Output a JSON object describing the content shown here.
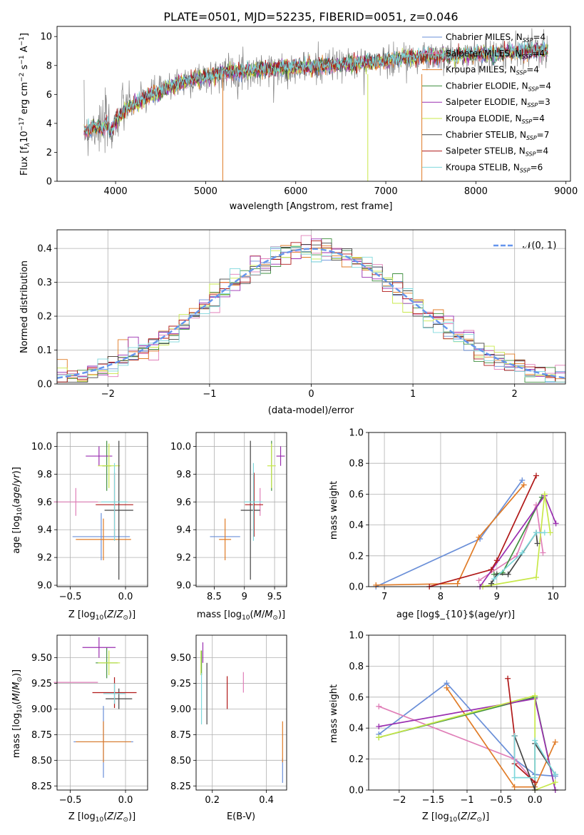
{
  "colors": {
    "Chabrier MILES": "#6a8fd8",
    "Salpeter MILES": "#e07fb8",
    "Kroupa MILES": "#e07b26",
    "Chabrier ELODIE": "#3f8f3f",
    "Salpeter ELODIE": "#9a2eb0",
    "Kroupa ELODIE": "#c8e84a",
    "Chabrier STELIB": "#444444",
    "Salpeter STELIB": "#b01818",
    "Kroupa STELIB": "#7fd8dc"
  },
  "chart_data": [
    {
      "id": "spectrum",
      "type": "line",
      "title": "PLATE=0501, MJD=52235, FIBERID=0051, z=0.046",
      "xlabel": "wavelength [Angstrom, rest frame]",
      "ylabel": "Flux [f$_\\lambda$10$^{-17}$ erg cm$^{-2}$ s$^{-1}$ A$^{-1}$]",
      "xlim": [
        3350,
        9050
      ],
      "ylim": [
        0,
        10.7
      ],
      "xticks": [
        4000,
        5000,
        6000,
        7000,
        8000,
        9000
      ],
      "yticks": [
        0,
        2,
        4,
        6,
        8,
        10
      ],
      "grid": false,
      "legend": "upper right",
      "legend_entries": [
        {
          "name": "Chabrier MILES",
          "suffix": "=4"
        },
        {
          "name": "Salpeter MILES",
          "suffix": "=4"
        },
        {
          "name": "Kroupa MILES",
          "suffix": "=4"
        },
        {
          "name": "Chabrier ELODIE",
          "suffix": "=4"
        },
        {
          "name": "Salpeter ELODIE",
          "suffix": "=3"
        },
        {
          "name": "Kroupa ELODIE",
          "suffix": "=4"
        },
        {
          "name": "Chabrier STELIB",
          "suffix": "=7"
        },
        {
          "name": "Salpeter STELIB",
          "suffix": "=4"
        },
        {
          "name": "Kroupa STELIB",
          "suffix": "=6"
        }
      ],
      "data_x": [
        3650,
        3700,
        3750,
        3800,
        3850,
        3900,
        3950,
        4000,
        4100,
        4200,
        4300,
        4400,
        4500,
        4600,
        4700,
        4800,
        4900,
        5000,
        5200,
        5400,
        5600,
        5800,
        6000,
        6200,
        6400,
        6600,
        6800,
        7000,
        7200,
        7400,
        7600,
        7800,
        8000,
        8200,
        8400,
        8600,
        8800
      ],
      "data_y": [
        3.5,
        3.6,
        3.8,
        3.9,
        3.5,
        4.0,
        3.4,
        4.2,
        5.0,
        5.3,
        5.6,
        6.0,
        6.2,
        6.5,
        6.8,
        6.9,
        7.1,
        7.2,
        7.5,
        7.6,
        7.7,
        7.8,
        7.8,
        7.9,
        8.0,
        8.1,
        8.2,
        8.3,
        8.5,
        8.6,
        8.6,
        8.7,
        8.8,
        8.8,
        8.9,
        9.0,
        9.1
      ],
      "model_y": [
        3.5,
        3.6,
        3.7,
        3.8,
        3.6,
        3.9,
        3.5,
        4.1,
        4.9,
        5.3,
        5.6,
        6.0,
        6.2,
        6.5,
        6.8,
        6.9,
        7.1,
        7.2,
        7.5,
        7.6,
        7.7,
        7.8,
        7.9,
        7.9,
        8.0,
        8.1,
        8.2,
        8.3,
        8.5,
        8.6,
        8.6,
        8.7,
        8.8,
        8.8,
        8.9,
        9.0,
        9.0
      ]
    },
    {
      "id": "residuals",
      "type": "bar",
      "xlabel": "(data-model)/error",
      "ylabel": "Normed distribution",
      "xlim": [
        -2.5,
        2.5
      ],
      "ylim": [
        0,
        0.455
      ],
      "xticks": [
        -2,
        -1,
        0,
        1,
        2
      ],
      "yticks": [
        0.0,
        0.1,
        0.2,
        0.3,
        0.4
      ],
      "grid": true,
      "legend": "upper right",
      "reference_curve": "$\\mathcal{N}(0,1)$",
      "bin_width": 0.1
    },
    {
      "id": "age_vs_Z",
      "type": "scatter",
      "xlabel": "Z [log$_{10}$(Z/Z$_\\odot$)]",
      "ylabel": "age  [log$_{10}$(age/yr)]",
      "xlim": [
        -0.62,
        0.2
      ],
      "ylim": [
        8.99,
        10.1
      ],
      "xticks": [
        -0.5,
        0.0
      ],
      "yticks": [
        9.0,
        9.2,
        9.4,
        9.6,
        9.8,
        10.0
      ],
      "grid": true,
      "points": [
        {
          "series": "Chabrier MILES",
          "x": -0.22,
          "y": 9.35,
          "xerr": 0.26,
          "yerr": 0.17
        },
        {
          "series": "Salpeter MILES",
          "x": -0.45,
          "y": 9.6,
          "xerr": 0.2,
          "yerr": 0.1
        },
        {
          "series": "Kroupa MILES",
          "x": -0.2,
          "y": 9.33,
          "xerr": 0.25,
          "yerr": 0.15
        },
        {
          "series": "Chabrier ELODIE",
          "x": -0.17,
          "y": 9.86,
          "xerr": 0.04,
          "yerr": 0.18
        },
        {
          "series": "Salpeter ELODIE",
          "x": -0.24,
          "y": 9.93,
          "xerr": 0.12,
          "yerr": 0.07
        },
        {
          "series": "Kroupa ELODIE",
          "x": -0.15,
          "y": 9.86,
          "xerr": 0.1,
          "yerr": 0.16
        },
        {
          "series": "Chabrier STELIB",
          "x": -0.06,
          "y": 9.54,
          "xerr": 0.13,
          "yerr": 0.5
        },
        {
          "series": "Salpeter STELIB",
          "x": -0.1,
          "y": 9.58,
          "xerr": 0.17,
          "yerr": 0.23
        },
        {
          "series": "Kroupa STELIB",
          "x": -0.1,
          "y": 9.6,
          "xerr": 0.12,
          "yerr": 0.28
        }
      ]
    },
    {
      "id": "age_vs_mass",
      "type": "scatter",
      "xlabel": "mass [log$_{10}$(M/M$_\\odot$)]",
      "ylabel": "",
      "xlim": [
        8.2,
        9.7
      ],
      "ylim": [
        8.99,
        10.1
      ],
      "xticks": [
        8.5,
        9.0,
        9.5
      ],
      "yticks": [
        9.0,
        9.2,
        9.4,
        9.6,
        9.8,
        10.0
      ],
      "grid": true,
      "points": [
        {
          "series": "Chabrier MILES",
          "x": 8.68,
          "y": 9.35,
          "xerr": 0.25,
          "yerr": 0.0
        },
        {
          "series": "Salpeter MILES",
          "x": 9.26,
          "y": 9.6,
          "xerr": 0.0,
          "yerr": 0.1
        },
        {
          "series": "Kroupa MILES",
          "x": 8.68,
          "y": 9.33,
          "xerr": 0.1,
          "yerr": 0.15
        },
        {
          "series": "Chabrier ELODIE",
          "x": 9.45,
          "y": 9.86,
          "xerr": 0.0,
          "yerr": 0.18
        },
        {
          "series": "Salpeter ELODIE",
          "x": 9.6,
          "y": 9.93,
          "xerr": 0.07,
          "yerr": 0.07
        },
        {
          "series": "Kroupa ELODIE",
          "x": 9.45,
          "y": 9.86,
          "xerr": 0.07,
          "yerr": 0.16
        },
        {
          "series": "Chabrier STELIB",
          "x": 9.1,
          "y": 9.54,
          "xerr": 0.16,
          "yerr": 0.5
        },
        {
          "series": "Salpeter STELIB",
          "x": 9.16,
          "y": 9.58,
          "xerr": 0.15,
          "yerr": 0.23
        },
        {
          "series": "Kroupa STELIB",
          "x": 9.15,
          "y": 9.6,
          "xerr": 0.15,
          "yerr": 0.28
        }
      ]
    },
    {
      "id": "weight_vs_age",
      "type": "line",
      "xlabel": "age  [log$_{10}$(age/yr)]",
      "ylabel": "mass weight",
      "xlim": [
        6.72,
        10.22
      ],
      "ylim": [
        0,
        1.0
      ],
      "xticks": [
        7,
        8,
        9,
        10
      ],
      "yticks": [
        0.0,
        0.2,
        0.4,
        0.6,
        0.8,
        1.0
      ],
      "grid": true,
      "series": [
        {
          "series": "Chabrier MILES",
          "x": [
            6.85,
            8.7,
            9.45
          ],
          "y": [
            0.0,
            0.31,
            0.69
          ]
        },
        {
          "series": "Salpeter MILES",
          "x": [
            8.68,
            9.35,
            9.7,
            9.82
          ],
          "y": [
            0.04,
            0.2,
            0.53,
            0.22
          ]
        },
        {
          "series": "Kroupa MILES",
          "x": [
            6.85,
            8.3,
            8.68,
            9.48
          ],
          "y": [
            0.01,
            0.02,
            0.32,
            0.66
          ]
        },
        {
          "series": "Chabrier ELODIE",
          "x": [
            8.95,
            9.1,
            9.8
          ],
          "y": [
            0.08,
            0.09,
            0.58
          ]
        },
        {
          "series": "Salpeter ELODIE",
          "x": [
            8.7,
            9.85,
            10.05
          ],
          "y": [
            0.0,
            0.59,
            0.41
          ]
        },
        {
          "series": "Kroupa ELODIE",
          "x": [
            8.75,
            9.7,
            9.85,
            9.95
          ],
          "y": [
            0.0,
            0.06,
            0.6,
            0.35
          ]
        },
        {
          "series": "Chabrier STELIB",
          "x": [
            8.9,
            9.0,
            9.2,
            9.7,
            9.72
          ],
          "y": [
            0.02,
            0.08,
            0.08,
            0.35,
            0.28
          ]
        },
        {
          "series": "Salpeter STELIB",
          "x": [
            7.8,
            8.9,
            9.0,
            9.7
          ],
          "y": [
            0.0,
            0.11,
            0.17,
            0.72
          ]
        },
        {
          "series": "Kroupa STELIB",
          "x": [
            8.95,
            9.45,
            9.7,
            9.85
          ],
          "y": [
            0.05,
            0.22,
            0.35,
            0.35
          ]
        }
      ]
    },
    {
      "id": "mass_vs_Z",
      "type": "scatter",
      "xlabel": "Z [log$_{10}$(Z/Z$_\\odot$)]",
      "ylabel": "mass [log$_{10}$(M/M$_\\odot$)]",
      "xlim": [
        -0.62,
        0.2
      ],
      "ylim": [
        8.21,
        9.72
      ],
      "xticks": [
        -0.5,
        0.0
      ],
      "yticks": [
        8.25,
        8.5,
        8.75,
        9.0,
        9.25,
        9.5
      ],
      "grid": true,
      "points": [
        {
          "series": "Chabrier MILES",
          "x": -0.2,
          "y": 8.68,
          "xerr": 0.27,
          "yerr": 0.35
        },
        {
          "series": "Salpeter MILES",
          "x": -0.45,
          "y": 9.26,
          "xerr": 0.2,
          "yerr": 0.0
        },
        {
          "series": "Kroupa MILES",
          "x": -0.2,
          "y": 8.68,
          "xerr": 0.25,
          "yerr": 0.2
        },
        {
          "series": "Chabrier ELODIE",
          "x": -0.17,
          "y": 9.45,
          "xerr": 0.1,
          "yerr": 0.15
        },
        {
          "series": "Salpeter ELODIE",
          "x": -0.24,
          "y": 9.6,
          "xerr": 0.15,
          "yerr": 0.1
        },
        {
          "series": "Kroupa ELODIE",
          "x": -0.15,
          "y": 9.45,
          "xerr": 0.1,
          "yerr": 0.12
        },
        {
          "series": "Chabrier STELIB",
          "x": -0.06,
          "y": 9.1,
          "xerr": 0.12,
          "yerr": 0.1
        },
        {
          "series": "Salpeter STELIB",
          "x": -0.1,
          "y": 9.16,
          "xerr": 0.2,
          "yerr": 0.15
        },
        {
          "series": "Kroupa STELIB",
          "x": -0.1,
          "y": 9.15,
          "xerr": 0.1,
          "yerr": 0.1
        }
      ]
    },
    {
      "id": "mass_vs_EBV",
      "type": "scatter",
      "xlabel": "E(B-V)",
      "ylabel": "",
      "xlim": [
        0.14,
        0.475
      ],
      "ylim": [
        8.21,
        9.72
      ],
      "xticks": [
        0.2,
        0.4
      ],
      "yticks": [
        8.25,
        8.5,
        8.75,
        9.0,
        9.25,
        9.5
      ],
      "grid": true,
      "points": [
        {
          "series": "Chabrier MILES",
          "x": 0.46,
          "y": 8.4,
          "xerr": 0.0,
          "yerr": 0.12
        },
        {
          "series": "Salpeter MILES",
          "x": 0.315,
          "y": 9.26,
          "xerr": 0.0,
          "yerr": 0.1
        },
        {
          "series": "Kroupa MILES",
          "x": 0.46,
          "y": 8.68,
          "xerr": 0.0,
          "yerr": 0.2
        },
        {
          "series": "Chabrier ELODIE",
          "x": 0.16,
          "y": 9.45,
          "xerr": 0.0,
          "yerr": 0.12
        },
        {
          "series": "Salpeter ELODIE",
          "x": 0.165,
          "y": 9.55,
          "xerr": 0.0,
          "yerr": 0.1
        },
        {
          "series": "Kroupa ELODIE",
          "x": 0.158,
          "y": 9.45,
          "xerr": 0.0,
          "yerr": 0.12
        },
        {
          "series": "Chabrier STELIB",
          "x": 0.18,
          "y": 9.15,
          "xerr": 0.0,
          "yerr": 0.3
        },
        {
          "series": "Salpeter STELIB",
          "x": 0.255,
          "y": 9.16,
          "xerr": 0.0,
          "yerr": 0.16
        },
        {
          "series": "Kroupa STELIB",
          "x": 0.16,
          "y": 9.1,
          "xerr": 0.0,
          "yerr": 0.25
        }
      ]
    },
    {
      "id": "weight_vs_Z",
      "type": "line",
      "xlabel": "Z [log$_{10}$(Z/Z$_\\odot$)]",
      "ylabel": "mass weight",
      "xlim": [
        -2.45,
        0.45
      ],
      "ylim": [
        0,
        1.0
      ],
      "xticks": [
        -2.0,
        -1.5,
        -1.0,
        -0.5,
        0.0
      ],
      "yticks": [
        0.0,
        0.2,
        0.4,
        0.6,
        0.8,
        1.0
      ],
      "grid": true,
      "series": [
        {
          "series": "Chabrier MILES",
          "x": [
            -2.3,
            -1.3,
            -0.3,
            0.0,
            0.3
          ],
          "y": [
            0.36,
            0.69,
            0.2,
            0.1,
            0.09
          ]
        },
        {
          "series": "Salpeter MILES",
          "x": [
            -2.3,
            -0.3,
            0.0
          ],
          "y": [
            0.54,
            0.2,
            0.05
          ]
        },
        {
          "series": "Kroupa MILES",
          "x": [
            -1.3,
            -0.3,
            0.0,
            0.3
          ],
          "y": [
            0.66,
            0.02,
            0.02,
            0.31
          ]
        },
        {
          "series": "Chabrier ELODIE",
          "x": [
            -2.3,
            0.0,
            0.3
          ],
          "y": [
            0.34,
            0.6,
            0.0
          ]
        },
        {
          "series": "Salpeter ELODIE",
          "x": [
            -2.3,
            0.0,
            0.3
          ],
          "y": [
            0.41,
            0.59,
            0.0
          ]
        },
        {
          "series": "Kroupa ELODIE",
          "x": [
            -2.3,
            0.0,
            0.0,
            0.3
          ],
          "y": [
            0.34,
            0.61,
            0.0,
            0.05
          ]
        },
        {
          "series": "Chabrier STELIB",
          "x": [
            -0.3,
            0.0,
            0.0,
            0.3
          ],
          "y": [
            0.35,
            0.0,
            0.3,
            0.1
          ]
        },
        {
          "series": "Salpeter STELIB",
          "x": [
            -0.4,
            -0.3,
            -0.3,
            0.0
          ],
          "y": [
            0.72,
            0.35,
            0.17,
            0.05
          ]
        },
        {
          "series": "Kroupa STELIB",
          "x": [
            -0.3,
            -0.3,
            0.0,
            0.0,
            0.3
          ],
          "y": [
            0.35,
            0.08,
            0.08,
            0.32,
            0.1
          ]
        }
      ]
    }
  ]
}
